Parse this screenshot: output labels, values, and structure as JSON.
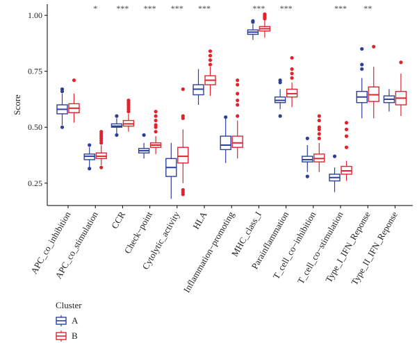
{
  "chart_data": {
    "type": "boxplot",
    "ylabel": "Score",
    "ylim": [
      0.15,
      1.05
    ],
    "yticks": [
      "0.25",
      "0.50",
      "0.75",
      "1.00"
    ],
    "ytick_values": [
      0.25,
      0.5,
      0.75,
      1.0
    ],
    "categories": [
      "APC_co_inhibition",
      "APC_co_stimulation",
      "CCR",
      "Check−point",
      "Cytolytic_activity",
      "HLA",
      "Inflammation−promoting",
      "MHC_class_I",
      "Parainflammation",
      "T_cell_co−inhibition",
      "T_cell_co−stimulation",
      "Type_I_IFN_Reponse",
      "Type_II_IFN_Reponse"
    ],
    "significance": [
      "",
      "*",
      "***",
      "***",
      "***",
      "***",
      "",
      "***",
      "***",
      "",
      "***",
      "**",
      ""
    ],
    "legend": {
      "title": "Cluster",
      "entries": [
        "A",
        "B"
      ],
      "position": "bottom-left"
    },
    "series": [
      {
        "name": "A",
        "color": "#2c3f9c",
        "boxes": [
          {
            "q1": 0.56,
            "median": 0.58,
            "q3": 0.6,
            "whisker_low": 0.51,
            "whisker_high": 0.65,
            "outliers": [
              0.5,
              0.66,
              0.67
            ]
          },
          {
            "q1": 0.355,
            "median": 0.37,
            "q3": 0.38,
            "whisker_low": 0.32,
            "whisker_high": 0.41,
            "outliers": [
              0.315,
              0.42
            ]
          },
          {
            "q1": 0.5,
            "median": 0.505,
            "q3": 0.515,
            "whisker_low": 0.47,
            "whisker_high": 0.54,
            "outliers": [
              0.465,
              0.55
            ]
          },
          {
            "q1": 0.385,
            "median": 0.395,
            "q3": 0.405,
            "whisker_low": 0.36,
            "whisker_high": 0.43,
            "outliers": [
              0.465
            ]
          },
          {
            "q1": 0.28,
            "median": 0.32,
            "q3": 0.36,
            "whisker_low": 0.18,
            "whisker_high": 0.43,
            "outliers": []
          },
          {
            "q1": 0.645,
            "median": 0.67,
            "q3": 0.69,
            "whisker_low": 0.6,
            "whisker_high": 0.76,
            "outliers": []
          },
          {
            "q1": 0.4,
            "median": 0.42,
            "q3": 0.46,
            "whisker_low": 0.34,
            "whisker_high": 0.54,
            "outliers": [
              0.545
            ]
          },
          {
            "q1": 0.915,
            "median": 0.925,
            "q3": 0.935,
            "whisker_low": 0.89,
            "whisker_high": 0.96,
            "outliers": [
              0.97,
              0.975
            ]
          },
          {
            "q1": 0.61,
            "median": 0.62,
            "q3": 0.635,
            "whisker_low": 0.58,
            "whisker_high": 0.67,
            "outliers": [
              0.55,
              0.7,
              0.71
            ]
          },
          {
            "q1": 0.345,
            "median": 0.355,
            "q3": 0.37,
            "whisker_low": 0.3,
            "whisker_high": 0.42,
            "outliers": [
              0.28,
              0.45
            ]
          },
          {
            "q1": 0.26,
            "median": 0.275,
            "q3": 0.29,
            "whisker_low": 0.21,
            "whisker_high": 0.32,
            "outliers": [
              0.37
            ]
          },
          {
            "q1": 0.61,
            "median": 0.635,
            "q3": 0.66,
            "whisker_low": 0.54,
            "whisker_high": 0.72,
            "outliers": [
              0.76,
              0.78,
              0.85
            ]
          },
          {
            "q1": 0.61,
            "median": 0.625,
            "q3": 0.64,
            "whisker_low": 0.57,
            "whisker_high": 0.67,
            "outliers": []
          }
        ]
      },
      {
        "name": "B",
        "color": "#e0232d",
        "boxes": [
          {
            "q1": 0.565,
            "median": 0.585,
            "q3": 0.605,
            "whisker_low": 0.52,
            "whisker_high": 0.65,
            "outliers": [
              0.71
            ]
          },
          {
            "q1": 0.36,
            "median": 0.37,
            "q3": 0.385,
            "whisker_low": 0.33,
            "whisker_high": 0.42,
            "outliers": [
              0.32,
              0.43,
              0.44,
              0.45,
              0.46,
              0.47,
              0.48
            ]
          },
          {
            "q1": 0.505,
            "median": 0.515,
            "q3": 0.53,
            "whisker_low": 0.48,
            "whisker_high": 0.56,
            "outliers": [
              0.57,
              0.58,
              0.59,
              0.6,
              0.61,
              0.62
            ]
          },
          {
            "q1": 0.41,
            "median": 0.42,
            "q3": 0.43,
            "whisker_low": 0.38,
            "whisker_high": 0.46,
            "outliers": [
              0.48,
              0.5,
              0.51,
              0.53,
              0.55,
              0.57
            ]
          },
          {
            "q1": 0.34,
            "median": 0.37,
            "q3": 0.41,
            "whisker_low": 0.25,
            "whisker_high": 0.49,
            "outliers": [
              0.2,
              0.21,
              0.22,
              0.54,
              0.55,
              0.67
            ]
          },
          {
            "q1": 0.69,
            "median": 0.71,
            "q3": 0.73,
            "whisker_low": 0.64,
            "whisker_high": 0.77,
            "outliers": [
              0.78,
              0.8,
              0.82,
              0.84
            ]
          },
          {
            "q1": 0.41,
            "median": 0.43,
            "q3": 0.46,
            "whisker_low": 0.36,
            "whisker_high": 0.53,
            "outliers": [
              0.55,
              0.6,
              0.62,
              0.65,
              0.69,
              0.71
            ]
          },
          {
            "q1": 0.93,
            "median": 0.94,
            "q3": 0.95,
            "whisker_low": 0.9,
            "whisker_high": 0.98,
            "outliers": [
              0.985,
              0.99,
              0.995,
              1.0,
              1.005
            ]
          },
          {
            "q1": 0.635,
            "median": 0.65,
            "q3": 0.67,
            "whisker_low": 0.59,
            "whisker_high": 0.7,
            "outliers": [
              0.72,
              0.74,
              0.76,
              0.81
            ]
          },
          {
            "q1": 0.345,
            "median": 0.36,
            "q3": 0.38,
            "whisker_low": 0.3,
            "whisker_high": 0.43,
            "outliers": [
              0.45,
              0.47,
              0.49,
              0.5,
              0.53,
              0.55
            ]
          },
          {
            "q1": 0.29,
            "median": 0.305,
            "q3": 0.325,
            "whisker_low": 0.26,
            "whisker_high": 0.35,
            "outliers": [
              0.41,
              0.46,
              0.49,
              0.52
            ]
          },
          {
            "q1": 0.615,
            "median": 0.645,
            "q3": 0.68,
            "whisker_low": 0.54,
            "whisker_high": 0.77,
            "outliers": [
              0.86
            ]
          },
          {
            "q1": 0.6,
            "median": 0.63,
            "q3": 0.66,
            "whisker_low": 0.55,
            "whisker_high": 0.74,
            "outliers": [
              0.79
            ]
          }
        ]
      }
    ]
  }
}
